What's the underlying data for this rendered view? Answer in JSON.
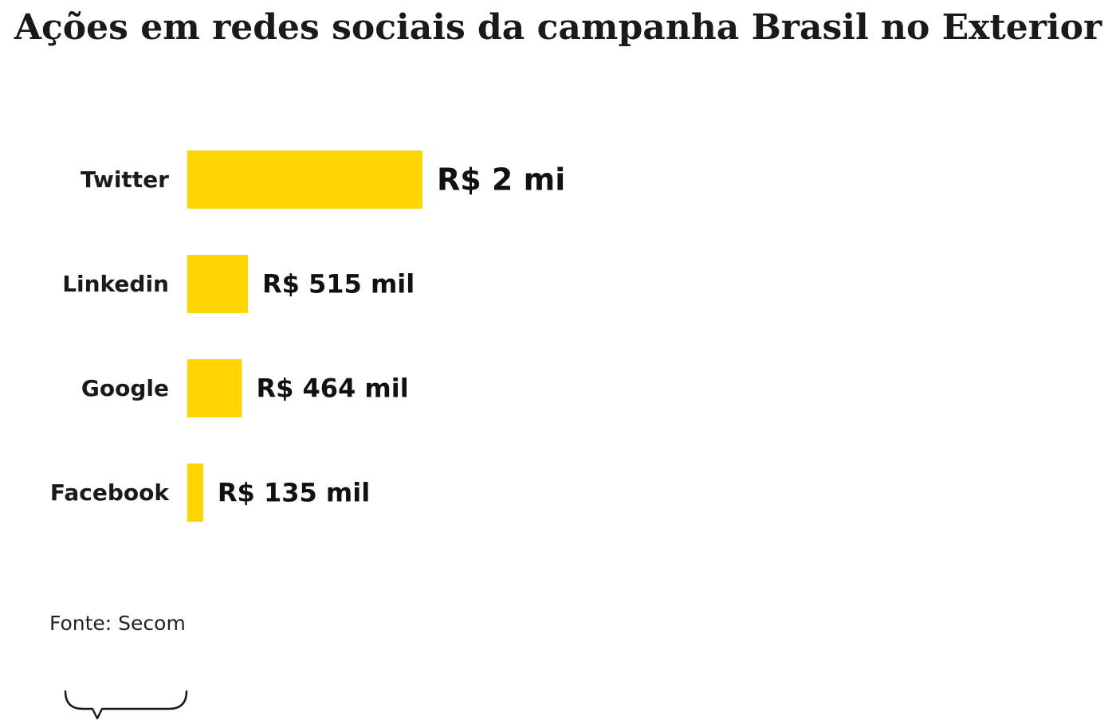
{
  "chart_data": {
    "type": "bar",
    "orientation": "horizontal",
    "title": "Ações em redes sociais da campanha Brasil no Exterior",
    "categories": [
      "Twitter",
      "Linkedin",
      "Google",
      "Facebook"
    ],
    "values": [
      2000000,
      515000,
      464000,
      135000
    ],
    "value_labels": [
      "R$ 2 mi",
      "R$ 515 mil",
      "R$ 464 mil",
      "R$ 135 mil"
    ],
    "xlim": [
      0,
      2000000
    ],
    "grid": false,
    "legend": "none",
    "bar_color": "#FFD500",
    "source": "Fonte: Secom"
  }
}
